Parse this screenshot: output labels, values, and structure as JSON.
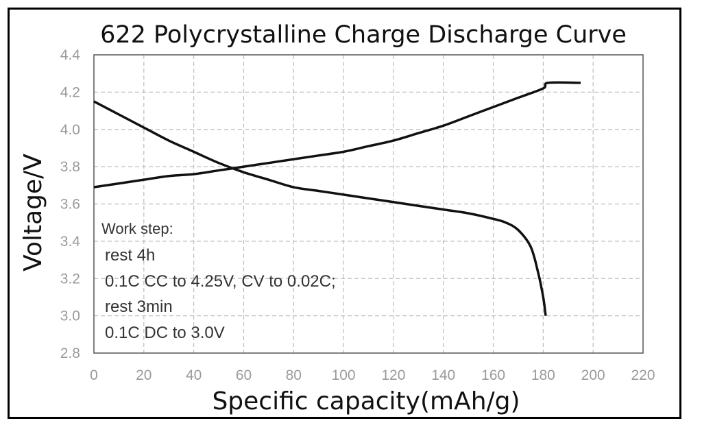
{
  "chart_data": {
    "type": "line",
    "title": "622 Polycrystalline Charge Discharge Curve",
    "xlabel": "Specific capacity(mAh/g)",
    "ylabel": "Voltage/V",
    "xlim": [
      0,
      220
    ],
    "ylim": [
      2.8,
      4.4
    ],
    "x_ticks": [
      "0",
      "20",
      "40",
      "60",
      "80",
      "100",
      "120",
      "140",
      "160",
      "180",
      "200",
      "220"
    ],
    "y_ticks": [
      "2.8",
      "3.0",
      "3.2",
      "3.4",
      "3.6",
      "3.8",
      "4.0",
      "4.2",
      "4.4"
    ],
    "grid": true,
    "series": [
      {
        "points": [
          [
            0,
            3.69
          ],
          [
            10,
            3.71
          ],
          [
            20,
            3.73
          ],
          [
            30,
            3.75
          ],
          [
            40,
            3.76
          ],
          [
            50,
            3.78
          ],
          [
            60,
            3.8
          ],
          [
            70,
            3.82
          ],
          [
            80,
            3.84
          ],
          [
            90,
            3.86
          ],
          [
            100,
            3.88
          ],
          [
            110,
            3.91
          ],
          [
            120,
            3.94
          ],
          [
            130,
            3.98
          ],
          [
            140,
            4.02
          ],
          [
            150,
            4.07
          ],
          [
            160,
            4.12
          ],
          [
            170,
            4.17
          ],
          [
            180,
            4.22
          ],
          [
            182,
            4.25
          ],
          [
            195,
            4.25
          ]
        ]
      },
      {
        "points": [
          [
            0,
            4.15
          ],
          [
            10,
            4.08
          ],
          [
            20,
            4.01
          ],
          [
            30,
            3.94
          ],
          [
            40,
            3.88
          ],
          [
            50,
            3.82
          ],
          [
            60,
            3.77
          ],
          [
            70,
            3.73
          ],
          [
            80,
            3.69
          ],
          [
            90,
            3.67
          ],
          [
            100,
            3.65
          ],
          [
            110,
            3.63
          ],
          [
            120,
            3.61
          ],
          [
            130,
            3.59
          ],
          [
            140,
            3.57
          ],
          [
            150,
            3.55
          ],
          [
            160,
            3.52
          ],
          [
            165,
            3.5
          ],
          [
            170,
            3.46
          ],
          [
            175,
            3.37
          ],
          [
            178,
            3.23
          ],
          [
            180,
            3.1
          ],
          [
            181,
            3.0
          ]
        ]
      }
    ],
    "annotations": [
      "Work step:",
      "rest 4h",
      "0.1C CC to 4.25V, CV to 0.02C;",
      "rest 3min",
      "0.1C DC to 3.0V"
    ]
  },
  "colors": {
    "line": "#111111",
    "grid": "#bdbdbd",
    "tick_text": "#9a9a9a"
  }
}
